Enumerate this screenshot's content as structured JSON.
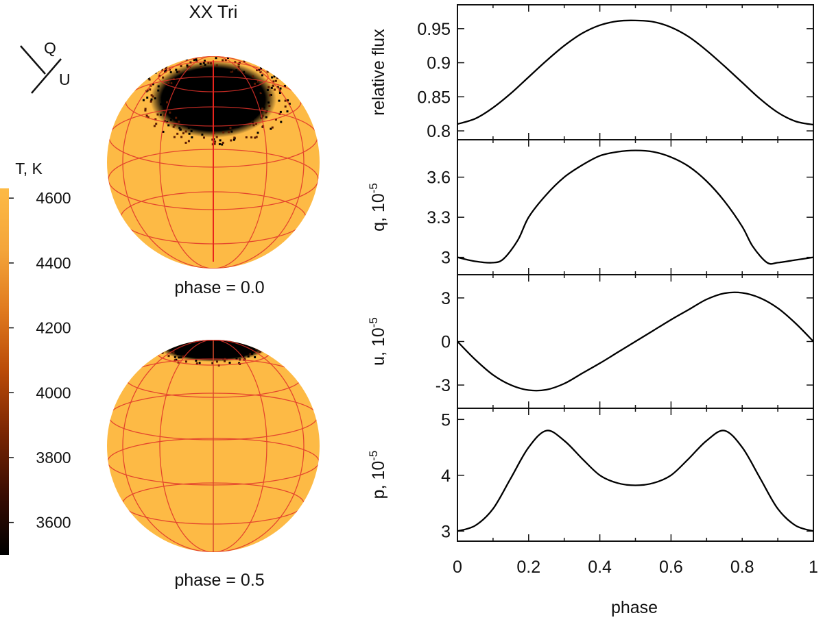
{
  "chart_data": {
    "title": "XX Tri",
    "stokes_axes": {
      "q_label": "Q",
      "u_label": "U"
    },
    "colorbar": {
      "label": "T, K",
      "range": [
        3500,
        4630
      ],
      "ticks": [
        3600,
        3800,
        4000,
        4200,
        4400,
        4600
      ],
      "colors": [
        "#000000",
        "#3a0d02",
        "#7a2603",
        "#b94a08",
        "#e07a1e",
        "#f4a53a",
        "#fdba45"
      ]
    },
    "colors": {
      "stellar_surface": "#fdba45",
      "grid_lines": "#e0322a",
      "spot": "#000000",
      "curve": "#000000"
    },
    "maps": [
      {
        "phase_label": "phase = 0.0",
        "view": "pole-on spot at top"
      },
      {
        "phase_label": "phase = 0.5",
        "view": "spot at limb"
      }
    ],
    "panels": [
      {
        "type": "line",
        "name": "flux",
        "ylabel": "relative flux",
        "ylim": [
          0.787,
          0.985
        ],
        "yticks": [
          0.8,
          0.85,
          0.9,
          0.95
        ],
        "ytick_labels": [
          "0.8",
          "0.85",
          "0.9",
          "0.95"
        ],
        "x": [
          0,
          0.05,
          0.1,
          0.15,
          0.2,
          0.25,
          0.3,
          0.35,
          0.4,
          0.45,
          0.5,
          0.55,
          0.6,
          0.65,
          0.7,
          0.75,
          0.8,
          0.85,
          0.9,
          0.95,
          1.0
        ],
        "y": [
          0.81,
          0.818,
          0.834,
          0.855,
          0.879,
          0.903,
          0.925,
          0.943,
          0.955,
          0.961,
          0.962,
          0.96,
          0.952,
          0.938,
          0.918,
          0.895,
          0.871,
          0.847,
          0.827,
          0.814,
          0.809
        ]
      },
      {
        "type": "line",
        "name": "q",
        "ylabel": "q, 10",
        "ylabel_exp": "-5",
        "ylim": [
          2.87,
          3.88
        ],
        "yticks": [
          3.0,
          3.3,
          3.6
        ],
        "ytick_labels": [
          "3",
          "3.3",
          "3.6"
        ],
        "x": [
          0,
          0.05,
          0.1,
          0.13,
          0.17,
          0.2,
          0.25,
          0.3,
          0.35,
          0.4,
          0.45,
          0.5,
          0.55,
          0.6,
          0.65,
          0.7,
          0.75,
          0.8,
          0.83,
          0.87,
          0.9,
          0.95,
          1.0
        ],
        "y": [
          3.0,
          2.97,
          2.96,
          2.99,
          3.13,
          3.3,
          3.47,
          3.6,
          3.69,
          3.76,
          3.79,
          3.8,
          3.79,
          3.75,
          3.68,
          3.57,
          3.42,
          3.23,
          3.08,
          2.96,
          2.96,
          2.98,
          3.0
        ]
      },
      {
        "type": "line",
        "name": "u",
        "ylabel": "u, 10",
        "ylabel_exp": "-5",
        "ylim": [
          -4.6,
          4.6
        ],
        "yticks": [
          -3,
          0,
          3
        ],
        "ytick_labels": [
          "-3",
          "0",
          "3"
        ],
        "x": [
          0,
          0.05,
          0.1,
          0.15,
          0.2,
          0.25,
          0.3,
          0.35,
          0.4,
          0.45,
          0.5,
          0.55,
          0.6,
          0.65,
          0.7,
          0.75,
          0.8,
          0.85,
          0.9,
          0.95,
          1.0
        ],
        "y": [
          0.0,
          -1.25,
          -2.3,
          -3.0,
          -3.35,
          -3.32,
          -2.9,
          -2.2,
          -1.5,
          -0.75,
          0.0,
          0.75,
          1.5,
          2.2,
          2.9,
          3.32,
          3.35,
          3.0,
          2.3,
          1.25,
          0.0
        ]
      },
      {
        "type": "line",
        "name": "p",
        "ylabel": "p, 10",
        "ylabel_exp": "-5",
        "ylim": [
          2.82,
          5.2
        ],
        "yticks": [
          3,
          4,
          5
        ],
        "ytick_labels": [
          "3",
          "4",
          "5"
        ],
        "x": [
          0,
          0.05,
          0.1,
          0.15,
          0.2,
          0.25,
          0.3,
          0.35,
          0.4,
          0.45,
          0.5,
          0.55,
          0.6,
          0.65,
          0.7,
          0.75,
          0.8,
          0.85,
          0.9,
          0.95,
          1.0
        ],
        "y": [
          3.0,
          3.1,
          3.4,
          3.95,
          4.5,
          4.8,
          4.62,
          4.3,
          4.0,
          3.86,
          3.82,
          3.86,
          4.0,
          4.3,
          4.62,
          4.8,
          4.5,
          3.95,
          3.4,
          3.1,
          3.0
        ]
      }
    ],
    "xaxis": {
      "label": "phase",
      "xlim": [
        0,
        1
      ],
      "ticks": [
        0,
        0.2,
        0.4,
        0.6,
        0.8,
        1
      ],
      "tick_labels": [
        "0",
        "0.2",
        "0.4",
        "0.6",
        "0.8",
        "1"
      ]
    }
  }
}
